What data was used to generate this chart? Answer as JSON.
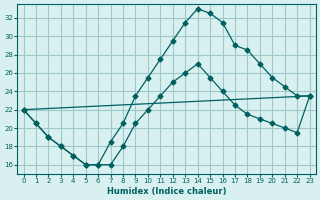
{
  "xlabel": "Humidex (Indice chaleur)",
  "bg_color": "#d8f0f0",
  "grid_color": "#a0c8c8",
  "line_color": "#006060",
  "xlim": [
    -0.5,
    23.5
  ],
  "ylim": [
    15,
    33.5
  ],
  "yticks": [
    16,
    18,
    20,
    22,
    24,
    26,
    28,
    30,
    32
  ],
  "xticks": [
    0,
    1,
    2,
    3,
    4,
    5,
    6,
    7,
    8,
    9,
    10,
    11,
    12,
    13,
    14,
    15,
    16,
    17,
    18,
    19,
    20,
    21,
    22,
    23
  ],
  "line1_x": [
    0,
    1,
    2,
    3,
    4,
    5,
    6,
    7,
    8,
    9,
    10,
    11,
    12,
    13,
    14,
    15,
    16,
    17,
    18,
    19,
    20,
    21,
    22,
    23
  ],
  "line1_y": [
    22,
    20.5,
    19,
    18,
    17,
    16,
    16,
    18.5,
    20.5,
    23.5,
    25.5,
    27.5,
    29.5,
    31.5,
    33,
    32.5,
    31.5,
    29,
    28.5,
    27,
    25.5,
    24.5,
    23.5,
    23.5
  ],
  "line2_x": [
    0,
    1,
    2,
    3,
    4,
    5,
    6,
    7,
    8,
    9,
    10,
    11,
    12,
    13,
    14,
    15,
    16,
    17,
    18,
    19,
    20,
    21,
    22,
    23
  ],
  "line2_y": [
    22,
    20.5,
    19,
    18,
    17,
    16,
    16,
    16,
    18,
    20.5,
    22,
    23.5,
    25,
    26,
    27,
    25.5,
    24,
    22.5,
    21.5,
    21,
    20.5,
    20,
    19.5,
    23.5
  ],
  "line3_x": [
    0,
    23
  ],
  "line3_y": [
    22,
    23.5
  ]
}
